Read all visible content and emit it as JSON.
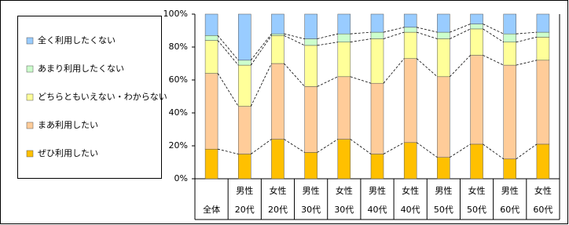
{
  "chart_data": {
    "type": "stacked-bar",
    "categories": [
      [
        "全体"
      ],
      [
        "男性",
        "20代"
      ],
      [
        "女性",
        "20代"
      ],
      [
        "男性",
        "30代"
      ],
      [
        "女性",
        "30代"
      ],
      [
        "男性",
        "40代"
      ],
      [
        "女性",
        "40代"
      ],
      [
        "男性",
        "50代"
      ],
      [
        "女性",
        "50代"
      ],
      [
        "男性",
        "60代"
      ],
      [
        "女性",
        "60代"
      ]
    ],
    "series": [
      {
        "name": "ぜひ利用したい",
        "color": "#FFC000",
        "values": [
          18,
          15,
          24,
          16,
          24,
          15,
          22,
          13,
          21,
          12,
          21
        ]
      },
      {
        "name": "まあ利用したい",
        "color": "#FFCC99",
        "values": [
          46,
          29,
          46,
          40,
          38,
          43,
          51,
          49,
          54,
          57,
          51
        ]
      },
      {
        "name": "どちらともいえない・わからない",
        "color": "#FFFF99",
        "values": [
          20,
          25,
          17,
          25,
          21,
          27,
          16,
          23,
          16,
          14,
          14
        ]
      },
      {
        "name": "あまり利用したくない",
        "color": "#CCFFCC",
        "values": [
          3,
          3,
          1,
          4,
          5,
          4,
          3,
          4,
          3,
          5,
          3
        ]
      },
      {
        "name": "全く利用したくない",
        "color": "#99CCFF",
        "values": [
          13,
          28,
          12,
          15,
          12,
          11,
          8,
          11,
          6,
          12,
          11
        ]
      }
    ],
    "ylim": [
      0,
      100
    ],
    "yticks": [
      {
        "value": 0,
        "label": "0%"
      },
      {
        "value": 20,
        "label": "20%"
      },
      {
        "value": 40,
        "label": "40%"
      },
      {
        "value": 60,
        "label": "60%"
      },
      {
        "value": 80,
        "label": "80%"
      },
      {
        "value": 100,
        "label": "100%"
      }
    ],
    "legend": "left"
  }
}
